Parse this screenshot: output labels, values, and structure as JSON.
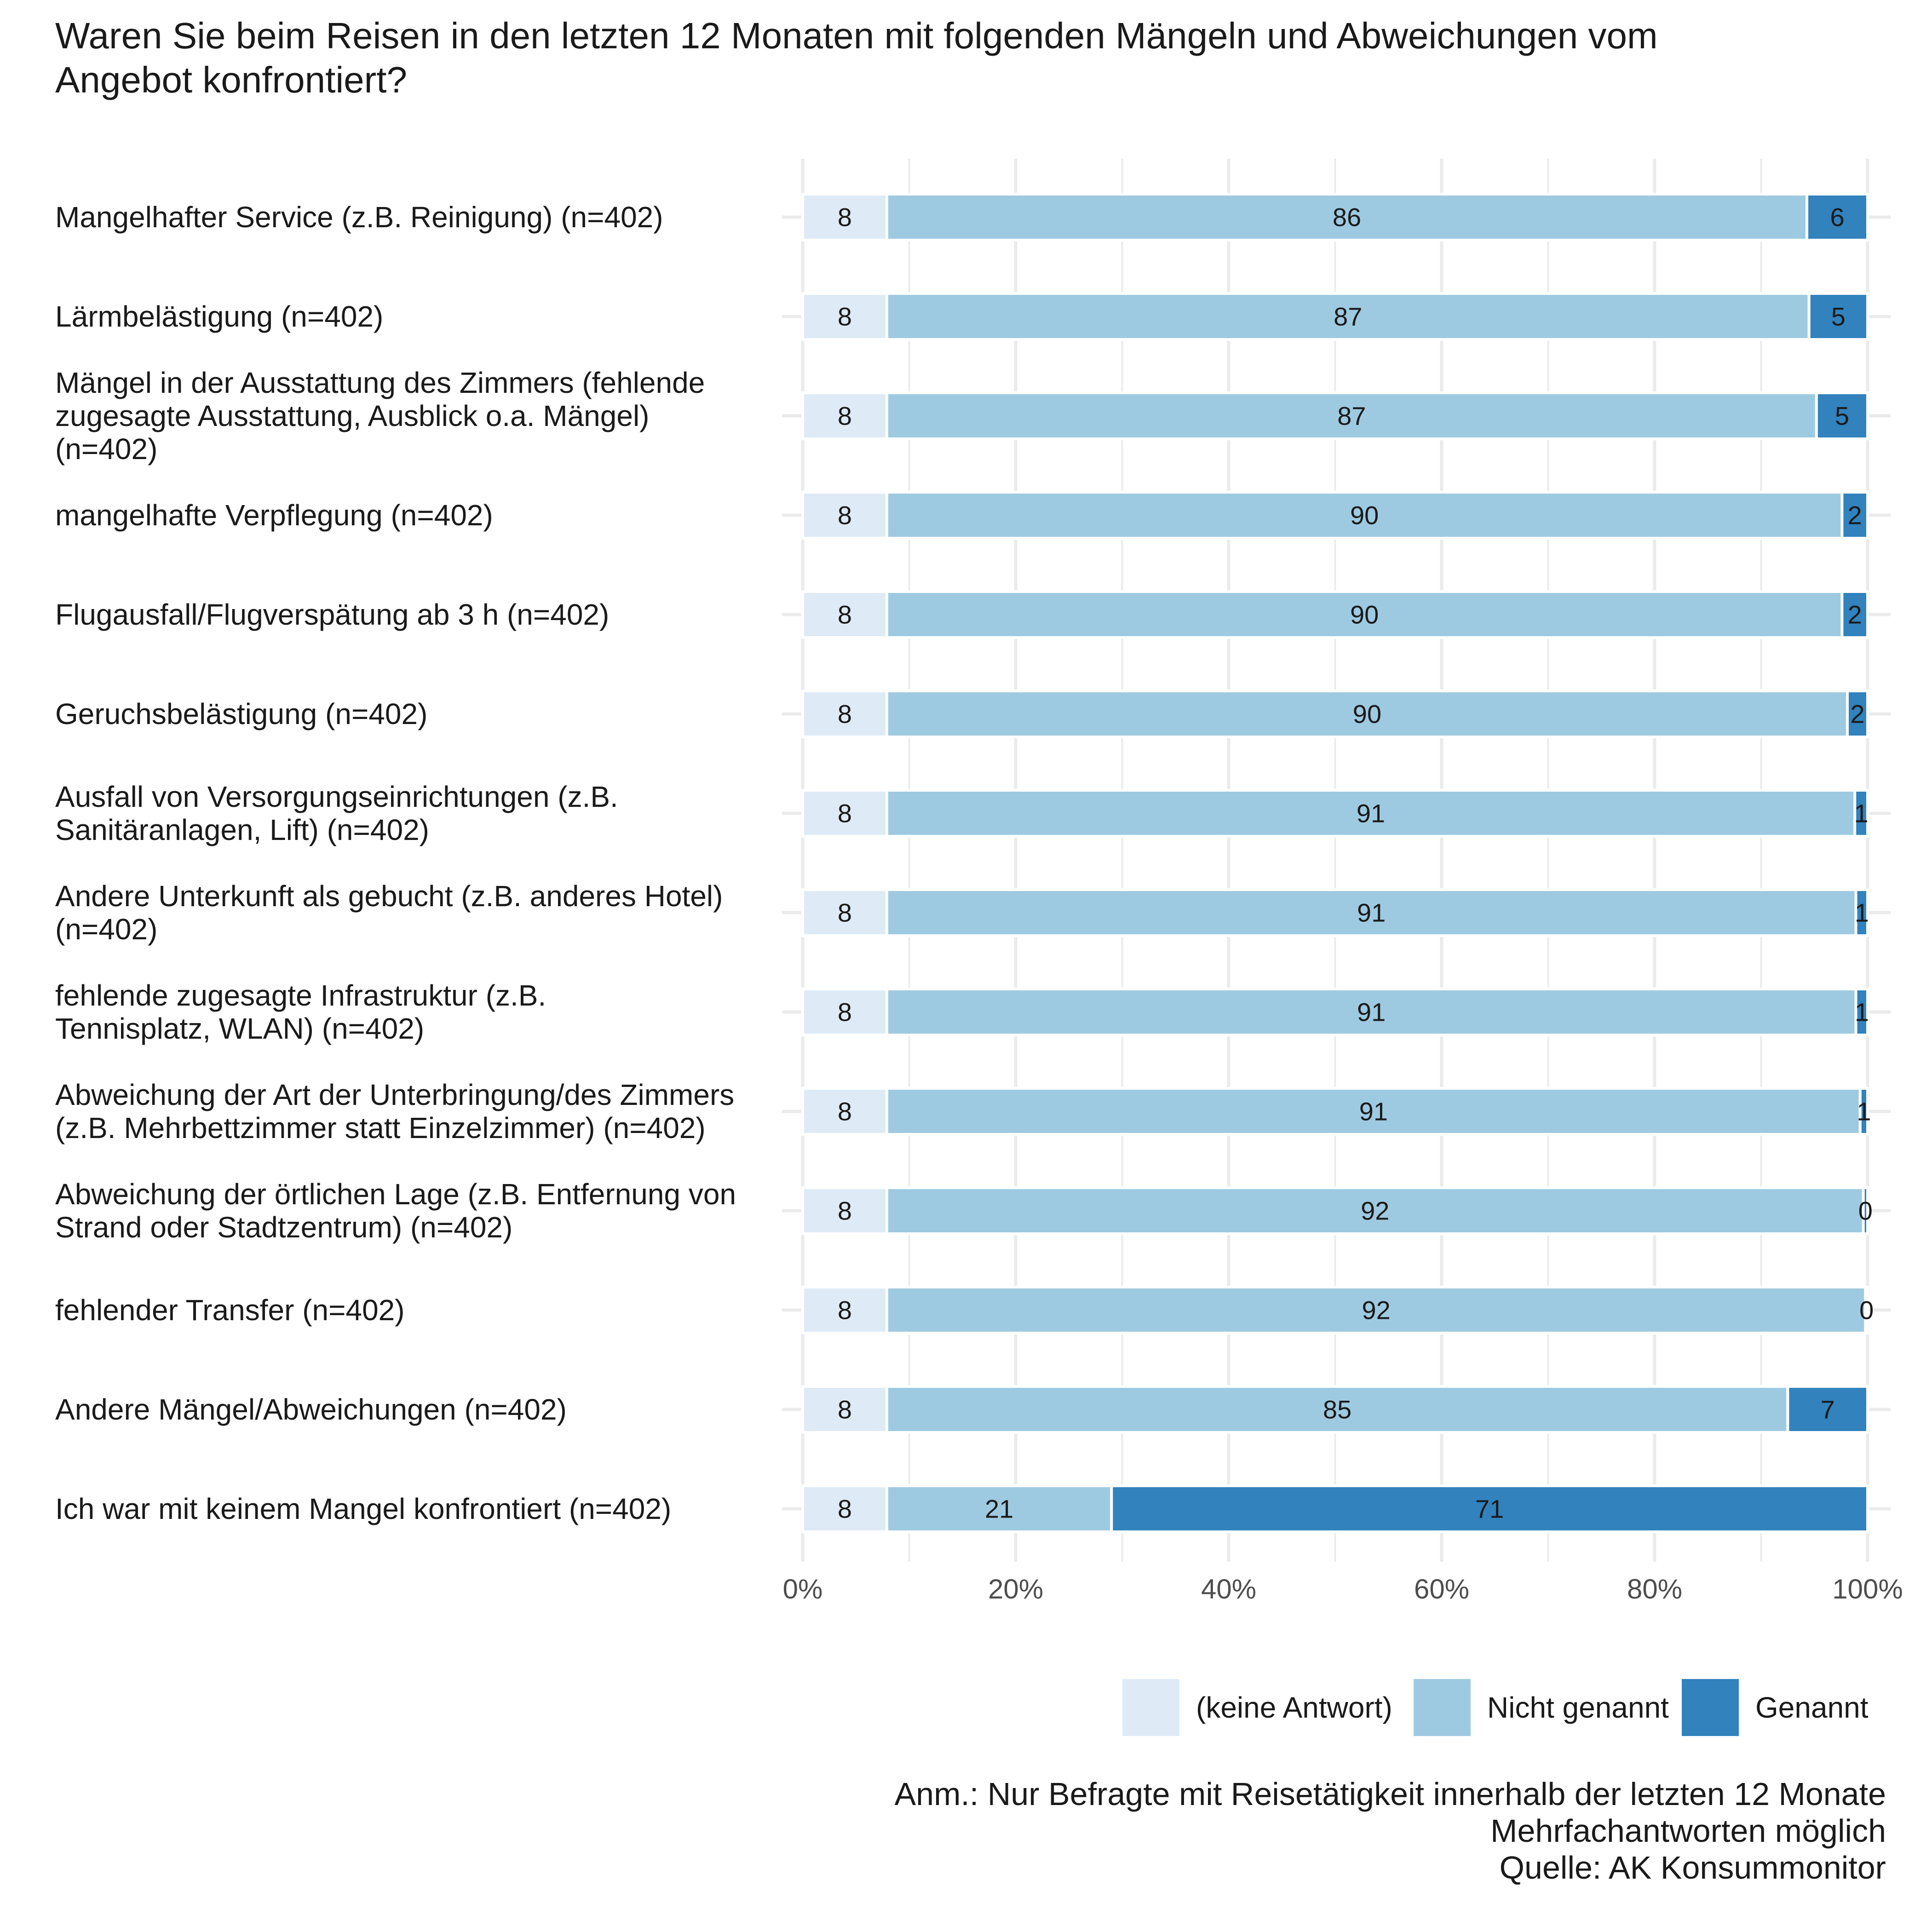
{
  "chart_data": {
    "type": "bar",
    "orientation": "horizontal",
    "stacked": true,
    "title": "Waren Sie beim Reisen in den letzten 12 Monaten mit folgenden Mängeln und Abweichungen vom\nAngebot konfrontiert?",
    "categories": [
      "Mangelhafter Service (z.B. Reinigung) (n=402)",
      "Lärmbelästigung (n=402)",
      "Mängel in der Ausstattung des Zimmers (fehlende\nzugesagte Ausstattung, Ausblick o.a. Mängel)\n(n=402)",
      "mangelhafte Verpflegung (n=402)",
      "Flugausfall/Flugverspätung ab 3 h (n=402)",
      "Geruchsbelästigung (n=402)",
      "Ausfall von Versorgungseinrichtungen (z.B.\nSanitäranlagen, Lift) (n=402)",
      "Andere Unterkunft als gebucht (z.B. anderes Hotel)\n(n=402)",
      "fehlende zugesagte Infrastruktur (z.B.\nTennisplatz, WLAN) (n=402)",
      "Abweichung der Art der Unterbringung/des Zimmers\n(z.B. Mehrbettzimmer statt Einzelzimmer) (n=402)",
      "Abweichung der örtlichen Lage (z.B. Entfernung von\nStrand oder Stadtzentrum) (n=402)",
      "fehlender Transfer (n=402)",
      "Andere Mängel/Abweichungen (n=402)",
      "Ich war mit keinem Mangel konfrontiert (n=402)"
    ],
    "series": [
      {
        "name": "(keine Antwort)",
        "color": "#deebf7",
        "values": [
          7.9,
          7.9,
          7.9,
          7.9,
          7.9,
          7.9,
          7.9,
          7.9,
          7.9,
          7.9,
          7.9,
          7.9,
          7.9,
          7.9
        ],
        "labels": [
          "8",
          "8",
          "8",
          "8",
          "8",
          "8",
          "8",
          "8",
          "8",
          "8",
          "8",
          "8",
          "8",
          "8"
        ]
      },
      {
        "name": "Nicht genannt",
        "color": "#9ecae1",
        "values": [
          86.4,
          86.6,
          87.3,
          89.7,
          89.7,
          90.2,
          90.9,
          91.0,
          91.0,
          91.4,
          91.7,
          91.9,
          84.6,
          21.1
        ],
        "labels": [
          "86",
          "87",
          "87",
          "90",
          "90",
          "90",
          "91",
          "91",
          "91",
          "91",
          "92",
          "92",
          "85",
          "21"
        ]
      },
      {
        "name": "Genannt",
        "color": "#3182bd",
        "values": [
          5.7,
          5.5,
          4.8,
          2.4,
          2.4,
          1.9,
          1.2,
          1.1,
          1.1,
          0.7,
          0.4,
          0.2,
          7.5,
          71.0
        ],
        "labels": [
          "6",
          "5",
          "5",
          "2",
          "2",
          "2",
          "1",
          "1",
          "1",
          "1",
          "0",
          "0",
          "7",
          "71"
        ]
      }
    ],
    "xlim": [
      0,
      100
    ],
    "xticks": [
      "0%",
      "20%",
      "40%",
      "60%",
      "80%",
      "100%"
    ],
    "grid": true,
    "legend": "bottom-right"
  },
  "footnote": {
    "line1": "Anm.: Nur Befragte mit Reisetätigkeit innerhalb der letzten 12 Monate",
    "line2": "Mehrfachantworten möglich",
    "line3": "Quelle: AK Konsummonitor"
  }
}
